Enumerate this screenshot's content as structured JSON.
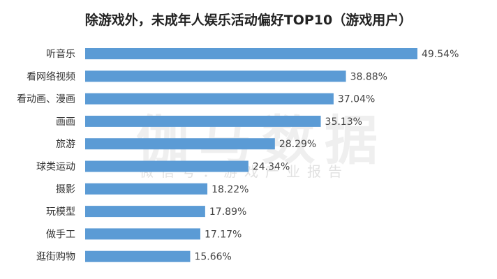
{
  "chart_data": {
    "type": "bar",
    "orientation": "horizontal",
    "title": "除游戏外，未成年人娱乐活动偏好TOP10（游戏用户）",
    "categories": [
      "听音乐",
      "看网络视频",
      "看动画、漫画",
      "画画",
      "旅游",
      "球类运动",
      "摄影",
      "玩模型",
      "做手工",
      "逛街购物"
    ],
    "values": [
      49.54,
      38.88,
      37.04,
      35.13,
      28.29,
      24.34,
      18.22,
      17.89,
      17.17,
      15.66
    ],
    "value_labels": [
      "49.54%",
      "38.88%",
      "37.04%",
      "35.13%",
      "28.29%",
      "24.34%",
      "18.22%",
      "17.89%",
      "17.17%",
      "15.66%"
    ],
    "xlim": [
      0,
      50
    ],
    "grid": false,
    "bar_color": "#5b9bd5"
  },
  "watermark": {
    "main": "伽马数据",
    "sub": "微信号：游戏产业报告"
  }
}
